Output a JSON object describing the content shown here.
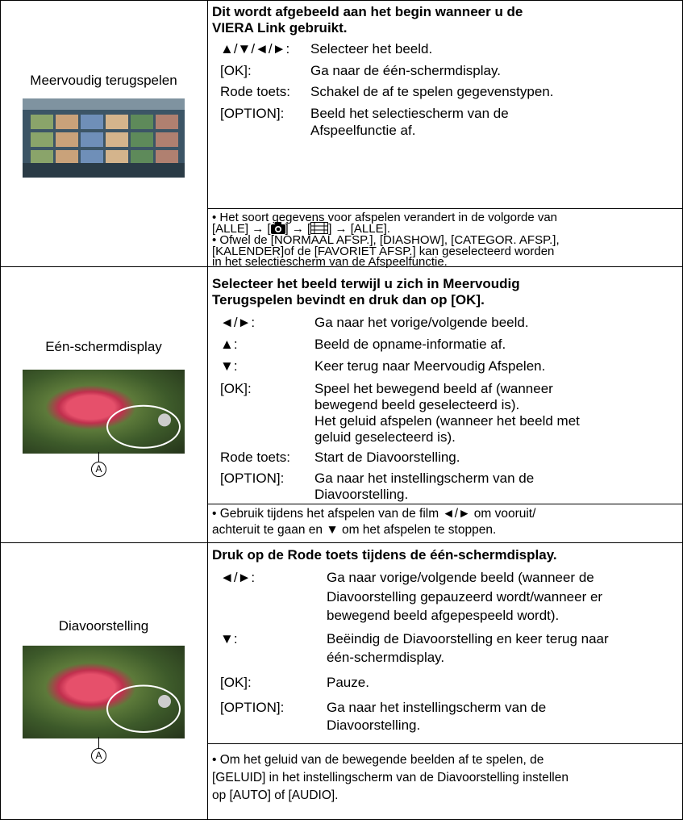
{
  "rows": [
    {
      "label": "Meervoudig terugspelen",
      "heading": [
        "Dit wordt afgebeeld aan het begin wanneer u de",
        "VIERA Link gebruikt."
      ],
      "items": [
        {
          "key": "▲/▼/◄/►:",
          "value": [
            "Selecteer het beeld."
          ]
        },
        {
          "key": "[OK]:",
          "value": [
            "Ga naar de één-schermdisplay."
          ]
        },
        {
          "key": "Rode toets:",
          "value": [
            "Schakel de af te spelen gegevenstypen."
          ]
        },
        {
          "key": "[OPTION]:",
          "value": [
            "Beeld het selectiescherm van de",
            "Afspeelfunctie af."
          ]
        }
      ],
      "notes": [
        "• Het soort gegevens voor afspelen verandert in de volgorde van",
        [
          "[ALLE] → [",
          "] → [",
          "] → [ALLE]."
        ],
        "• Ofwel de [NORMAAL AFSP.], [DIASHOW], [CATEGOR. AFSP.],",
        "[KALENDER]of de [FAVORIET AFSP.] kan geselecteerd worden",
        "in het selectiescherm van de Afspeelfunctie."
      ]
    },
    {
      "label": "Eén-schermdisplay",
      "annotation": "A",
      "heading": [
        "Selecteer het beeld terwijl u zich in Meervoudig",
        "Terugspelen bevindt en druk dan op [OK]."
      ],
      "items": [
        {
          "key": "◄/►:",
          "value": [
            "Ga naar het vorige/volgende beeld."
          ]
        },
        {
          "key": "▲:",
          "value": [
            "Beeld de opname-informatie af."
          ]
        },
        {
          "key": "▼:",
          "value": [
            "Keer terug naar Meervoudig Afspelen."
          ]
        },
        {
          "key": "[OK]:",
          "value": [
            "Speel het bewegend beeld af (wanneer",
            "bewegend beeld geselecteerd is).",
            "Het geluid afspelen (wanneer het beeld met",
            "geluid geselecteerd is)."
          ]
        },
        {
          "key": "Rode toets:",
          "value": [
            "Start de Diavoorstelling."
          ]
        },
        {
          "key": "[OPTION]:",
          "value": [
            "Ga naar het instellingscherm van de",
            "Diavoorstelling."
          ]
        }
      ],
      "notes": [
        "• Gebruik tijdens het afspelen van de film ◄/► om vooruit/",
        "achteruit te gaan en ▼ om het afspelen te stoppen."
      ]
    },
    {
      "label": "Diavoorstelling",
      "annotation": "A",
      "heading": [
        "Druk op de Rode toets tijdens de één-schermdisplay."
      ],
      "items": [
        {
          "key": "◄/►:",
          "value": [
            "Ga naar vorige/volgende beeld (wanneer de",
            "Diavoorstelling gepauzeerd wordt/wanneer er",
            "bewegend beeld afgepespeeld wordt)."
          ]
        },
        {
          "key": "▼:",
          "value": [
            "Beëindig de Diavoorstelling en keer terug naar",
            "één-schermdisplay."
          ]
        },
        {
          "key": "[OK]:",
          "value": [
            "Pauze."
          ]
        },
        {
          "key": "[OPTION]:",
          "value": [
            "Ga naar het instellingscherm van de",
            "Diavoorstelling."
          ]
        }
      ],
      "notes": [
        "• Om het geluid van de bewegende beelden af te spelen, de",
        "[GELUID] in het instellingscherm van de Diavoorstelling instellen",
        "op [AUTO] of [AUDIO]."
      ]
    }
  ]
}
